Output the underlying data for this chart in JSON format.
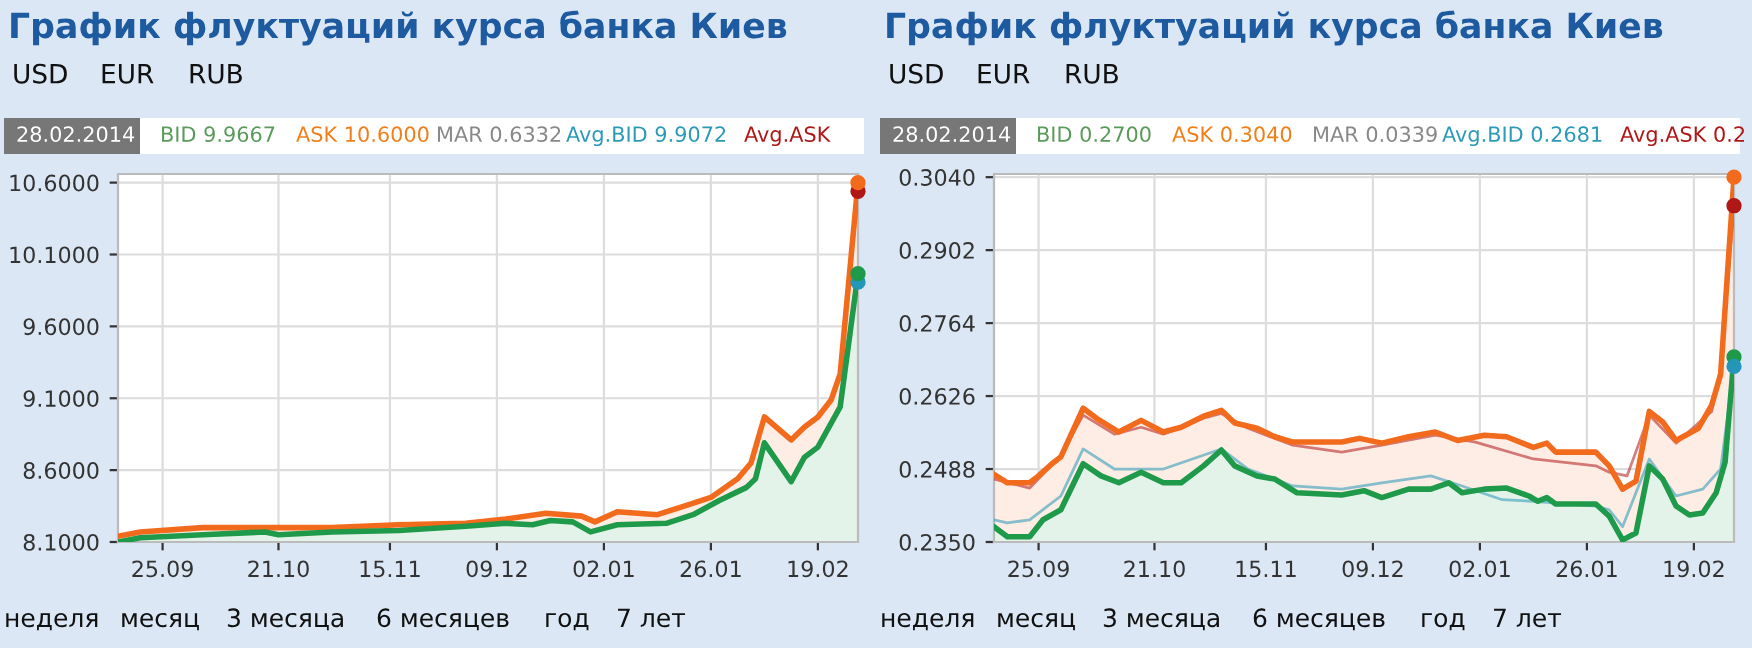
{
  "chart_data": [
    {
      "type": "line",
      "title": "График флуктуаций курса банка Киев",
      "annotations": [
        "USD",
        "EUR",
        "RUB",
        "28.02.2014",
        "BID 9.9667",
        "ASK 10.6000",
        "MAR 0.6332",
        "Avg.BID 9.9072",
        "Avg.ASK",
        "неделя",
        "месяц",
        "3 месяца",
        "6 месяцев",
        "год",
        "7 лет"
      ],
      "series": [
        {
          "type": "area",
          "color": "#f26a1b",
          "x": [
            "2013-09-15",
            "2013-09-20",
            "2013-10-04",
            "2013-10-18",
            "2013-11-02",
            "2013-11-17",
            "2013-12-02",
            "2013-12-11",
            "2013-12-20",
            "2013-12-28",
            "2013-12-31",
            "2014-01-05",
            "2014-01-14",
            "2014-01-20",
            "2014-01-26",
            "2014-02-01",
            "2014-02-04",
            "2014-02-07",
            "2014-02-13",
            "2014-02-16",
            "2014-02-19",
            "2014-02-22",
            "2014-02-24",
            "2014-02-28"
          ],
          "values": [
            8.14,
            8.17,
            8.2,
            8.2,
            8.2,
            8.22,
            8.23,
            8.26,
            8.3,
            8.28,
            8.24,
            8.31,
            8.29,
            8.35,
            8.41,
            8.54,
            8.65,
            8.97,
            8.81,
            8.9,
            8.97,
            9.09,
            9.27,
            10.6
          ]
        },
        {
          "type": "area",
          "color": "#1e9a4a",
          "x": [
            "2013-09-15",
            "2013-09-20",
            "2013-10-04",
            "2013-10-18",
            "2013-10-21",
            "2013-11-02",
            "2013-11-17",
            "2013-12-02",
            "2013-12-11",
            "2013-12-17",
            "2013-12-21",
            "2013-12-26",
            "2013-12-30",
            "2014-01-05",
            "2014-01-16",
            "2014-01-22",
            "2014-01-28",
            "2014-02-03",
            "2014-02-05",
            "2014-02-07",
            "2014-02-13",
            "2014-02-16",
            "2014-02-19",
            "2014-02-24",
            "2014-02-28"
          ],
          "values": [
            8.1,
            8.13,
            8.15,
            8.17,
            8.15,
            8.17,
            8.18,
            8.21,
            8.23,
            8.22,
            8.25,
            8.24,
            8.17,
            8.22,
            8.23,
            8.29,
            8.39,
            8.48,
            8.54,
            8.79,
            8.52,
            8.69,
            8.76,
            9.04,
            9.9667
          ]
        },
        {
          "type": "line",
          "marker": "circle",
          "color": "#b01818",
          "x": [
            "2014-02-28"
          ],
          "values": [
            10.54
          ]
        },
        {
          "type": "line",
          "marker": "circle",
          "color": "#2496b8",
          "x": [
            "2014-02-28"
          ],
          "values": [
            9.9072
          ]
        },
        {
          "type": "scatter",
          "marker": "circle",
          "color": "#f26a1b",
          "x": [
            "2014-02-28"
          ],
          "values": [
            10.6
          ]
        },
        {
          "type": "scatter",
          "marker": "circle",
          "color": "#1e9a4a",
          "x": [
            "2014-02-28"
          ],
          "values": [
            9.9667
          ]
        }
      ],
      "xlim": [
        "2013-09-15",
        "2014-02-28"
      ],
      "xticks": [
        {
          "value": "2013-09-25",
          "label": "25.09"
        },
        {
          "value": "2013-10-21",
          "label": "21.10"
        },
        {
          "value": "2013-11-15",
          "label": "15.11"
        },
        {
          "value": "2013-12-09",
          "label": "09.12"
        },
        {
          "value": "2014-01-02",
          "label": "02.01"
        },
        {
          "value": "2014-01-26",
          "label": "26.01"
        },
        {
          "value": "2014-02-19",
          "label": "19.02"
        }
      ],
      "ylim": [
        8.1,
        10.66
      ],
      "yticks": [
        {
          "value": 8.1,
          "label": "8.1000"
        },
        {
          "value": 8.6,
          "label": "8.6000"
        },
        {
          "value": 9.1,
          "label": "9.1000"
        },
        {
          "value": 9.6,
          "label": "9.6000"
        },
        {
          "value": 10.1,
          "label": "10.1000"
        },
        {
          "value": 10.6,
          "label": "10.6000"
        }
      ],
      "grid": true
    },
    {
      "type": "line",
      "title": "График флуктуаций курса банка Киев",
      "annotations": [
        "USD",
        "EUR",
        "RUB",
        "28.02.2014",
        "BID 0.2700",
        "ASK 0.3040",
        "MAR 0.0339",
        "Avg.BID 0.2681",
        "Avg.ASK 0.2",
        "неделя",
        "месяц",
        "3 месяца",
        "6 месяцев",
        "год",
        "7 лет"
      ],
      "series": [
        {
          "type": "area",
          "color": "#f26a1b",
          "x": [
            "2013-09-15",
            "2013-09-18",
            "2013-09-23",
            "2013-09-25",
            "2013-09-28",
            "2013-09-30",
            "2013-10-05",
            "2013-10-08",
            "2013-10-13",
            "2013-10-18",
            "2013-10-23",
            "2013-10-27",
            "2013-11-01",
            "2013-11-05",
            "2013-11-08",
            "2013-11-13",
            "2013-11-17",
            "2013-11-21",
            "2013-12-02",
            "2013-12-06",
            "2013-12-11",
            "2013-12-17",
            "2013-12-23",
            "2013-12-28",
            "2014-01-03",
            "2014-01-08",
            "2014-01-14",
            "2014-01-17",
            "2014-01-19",
            "2014-01-28",
            "2014-01-31",
            "2014-02-03",
            "2014-02-06",
            "2014-02-09",
            "2014-02-12",
            "2014-02-15",
            "2014-02-20",
            "2014-02-23",
            "2014-02-25",
            "2014-02-28"
          ],
          "values": [
            0.2478,
            0.2462,
            0.2462,
            0.2475,
            0.2498,
            0.2511,
            0.2603,
            0.2584,
            0.2558,
            0.258,
            0.2558,
            0.2567,
            0.2588,
            0.2599,
            0.2575,
            0.2565,
            0.2549,
            0.2539,
            0.2539,
            0.2546,
            0.2537,
            0.2549,
            0.2558,
            0.2542,
            0.2552,
            0.2549,
            0.2529,
            0.2537,
            0.252,
            0.252,
            0.2494,
            0.245,
            0.2465,
            0.2597,
            0.2577,
            0.2542,
            0.2565,
            0.2609,
            0.2667,
            0.304
          ]
        },
        {
          "type": "area",
          "color": "#1e9a4a",
          "x": [
            "2013-09-15",
            "2013-09-18",
            "2013-09-23",
            "2013-09-26",
            "2013-09-30",
            "2013-10-05",
            "2013-10-09",
            "2013-10-13",
            "2013-10-18",
            "2013-10-23",
            "2013-10-27",
            "2013-11-01",
            "2013-11-05",
            "2013-11-08",
            "2013-11-13",
            "2013-11-17",
            "2013-11-22",
            "2013-12-02",
            "2013-12-07",
            "2013-12-11",
            "2013-12-17",
            "2013-12-22",
            "2013-12-26",
            "2013-12-29",
            "2014-01-03",
            "2014-01-08",
            "2014-01-13",
            "2014-01-15",
            "2014-01-17",
            "2014-01-19",
            "2014-01-28",
            "2014-01-31",
            "2014-02-03",
            "2014-02-06",
            "2014-02-09",
            "2014-02-12",
            "2014-02-15",
            "2014-02-18",
            "2014-02-21",
            "2014-02-24",
            "2014-02-26",
            "2014-02-28"
          ],
          "values": [
            0.2379,
            0.236,
            0.236,
            0.2392,
            0.2411,
            0.2498,
            0.2475,
            0.2462,
            0.2482,
            0.2462,
            0.2462,
            0.2494,
            0.2524,
            0.2494,
            0.2475,
            0.2469,
            0.2443,
            0.2439,
            0.2447,
            0.2434,
            0.245,
            0.245,
            0.2462,
            0.2443,
            0.245,
            0.2452,
            0.2437,
            0.2427,
            0.2434,
            0.2422,
            0.2422,
            0.2399,
            0.2354,
            0.2367,
            0.2494,
            0.2469,
            0.2418,
            0.2401,
            0.2405,
            0.2443,
            0.2501,
            0.27
          ]
        },
        {
          "type": "line",
          "color": "#b01818",
          "x": [
            "2013-09-15",
            "2013-09-23",
            "2013-09-30",
            "2013-10-05",
            "2013-10-12",
            "2013-10-18",
            "2013-10-23",
            "2013-11-01",
            "2013-11-05",
            "2013-11-11",
            "2013-11-21",
            "2013-12-02",
            "2013-12-11",
            "2013-12-23",
            "2014-01-01",
            "2014-01-14",
            "2014-01-28",
            "2014-01-31",
            "2014-02-04",
            "2014-02-09",
            "2014-02-15",
            "2014-02-23",
            "2014-02-25",
            "2014-02-28"
          ],
          "values": [
            0.2469,
            0.2452,
            0.2514,
            0.259,
            0.2554,
            0.2567,
            0.2554,
            0.2584,
            0.2593,
            0.2565,
            0.2533,
            0.252,
            0.2533,
            0.2552,
            0.2539,
            0.2507,
            0.2494,
            0.2482,
            0.2475,
            0.259,
            0.2537,
            0.2597,
            0.268,
            0.2986
          ]
        },
        {
          "type": "line",
          "color": "#2496b8",
          "x": [
            "2013-09-15",
            "2013-09-18",
            "2013-09-23",
            "2013-09-30",
            "2013-10-05",
            "2013-10-12",
            "2013-10-23",
            "2013-11-05",
            "2013-11-11",
            "2013-11-21",
            "2013-12-02",
            "2013-12-11",
            "2013-12-22",
            "2013-12-29",
            "2014-01-07",
            "2014-01-14",
            "2014-01-28",
            "2014-01-31",
            "2014-02-03",
            "2014-02-09",
            "2014-02-15",
            "2014-02-21",
            "2014-02-25",
            "2014-02-28"
          ],
          "values": [
            0.2392,
            0.2386,
            0.2392,
            0.2437,
            0.2526,
            0.2488,
            0.2488,
            0.2526,
            0.2488,
            0.2456,
            0.245,
            0.2462,
            0.2475,
            0.2456,
            0.243,
            0.2427,
            0.2418,
            0.2411,
            0.2379,
            0.2507,
            0.2437,
            0.245,
            0.2488,
            0.2682
          ]
        },
        {
          "type": "scatter",
          "marker": "circle",
          "color": "#f26a1b",
          "x": [
            "2014-02-28"
          ],
          "values": [
            0.304
          ]
        },
        {
          "type": "scatter",
          "marker": "circle",
          "color": "#1e9a4a",
          "x": [
            "2014-02-28"
          ],
          "values": [
            0.27
          ]
        },
        {
          "type": "scatter",
          "marker": "circle",
          "color": "#b01818",
          "x": [
            "2014-02-28"
          ],
          "values": [
            0.2986
          ]
        },
        {
          "type": "scatter",
          "marker": "circle",
          "color": "#2496b8",
          "x": [
            "2014-02-28"
          ],
          "values": [
            0.2682
          ]
        }
      ],
      "xlim": [
        "2013-09-15",
        "2014-02-28"
      ],
      "xticks": [
        {
          "value": "2013-09-25",
          "label": "25.09"
        },
        {
          "value": "2013-10-21",
          "label": "21.10"
        },
        {
          "value": "2013-11-15",
          "label": "15.11"
        },
        {
          "value": "2013-12-09",
          "label": "09.12"
        },
        {
          "value": "2014-01-02",
          "label": "02.01"
        },
        {
          "value": "2014-01-26",
          "label": "26.01"
        },
        {
          "value": "2014-02-19",
          "label": "19.02"
        }
      ],
      "ylim": [
        0.235,
        0.3046
      ],
      "yticks": [
        {
          "value": 0.235,
          "label": "0.2350"
        },
        {
          "value": 0.2488,
          "label": "0.2488"
        },
        {
          "value": 0.2626,
          "label": "0.2626"
        },
        {
          "value": 0.2764,
          "label": "0.2764"
        },
        {
          "value": 0.2902,
          "label": "0.2902"
        },
        {
          "value": 0.304,
          "label": "0.3040"
        }
      ],
      "grid": true
    }
  ]
}
